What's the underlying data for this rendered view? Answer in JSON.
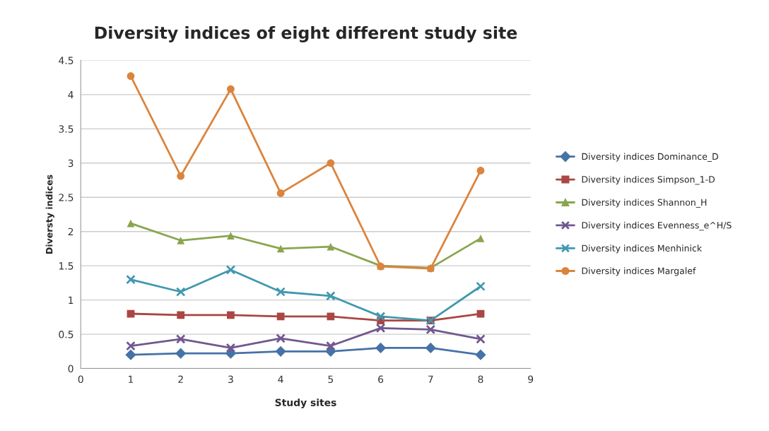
{
  "chart_data": {
    "type": "line",
    "title": "Diversity indices of eight different study site",
    "xlabel": "Study sites",
    "ylabel": "Diversty indices",
    "x": [
      1,
      2,
      3,
      4,
      5,
      6,
      7,
      8
    ],
    "series": [
      {
        "name": "Diversity indices Dominance_D",
        "color": "#4572a7",
        "marker": "diamond",
        "values": [
          0.2,
          0.22,
          0.22,
          0.25,
          0.25,
          0.3,
          0.3,
          0.2
        ]
      },
      {
        "name": "Diversity indices Simpson_1-D",
        "color": "#aa4643",
        "marker": "square",
        "values": [
          0.8,
          0.78,
          0.78,
          0.76,
          0.76,
          0.7,
          0.7,
          0.8
        ]
      },
      {
        "name": "Diversity indices Shannon_H",
        "color": "#89a54e",
        "marker": "triangle",
        "values": [
          2.12,
          1.87,
          1.94,
          1.75,
          1.78,
          1.5,
          1.47,
          1.9
        ]
      },
      {
        "name": "Diversity indices Evenness_e^H/S",
        "color": "#71588f",
        "marker": "cross",
        "values": [
          0.33,
          0.43,
          0.3,
          0.44,
          0.33,
          0.59,
          0.57,
          0.43
        ]
      },
      {
        "name": "Diversity indices Menhinick",
        "color": "#4198af",
        "marker": "cross",
        "values": [
          1.3,
          1.12,
          1.44,
          1.12,
          1.06,
          0.76,
          0.7,
          1.2
        ]
      },
      {
        "name": "Diversity indices Margalef",
        "color": "#db843d",
        "marker": "circle",
        "values": [
          4.27,
          2.81,
          4.08,
          2.56,
          3.0,
          1.49,
          1.46,
          2.89
        ]
      }
    ],
    "xlim": [
      0,
      9
    ],
    "xticks": [
      0,
      1,
      2,
      3,
      4,
      5,
      6,
      7,
      8,
      9
    ],
    "ylim": [
      0,
      4.5
    ],
    "yticks": [
      0,
      0.5,
      1,
      1.5,
      2,
      2.5,
      3,
      3.5,
      4,
      4.5
    ],
    "grid": "y",
    "legend": "right"
  }
}
